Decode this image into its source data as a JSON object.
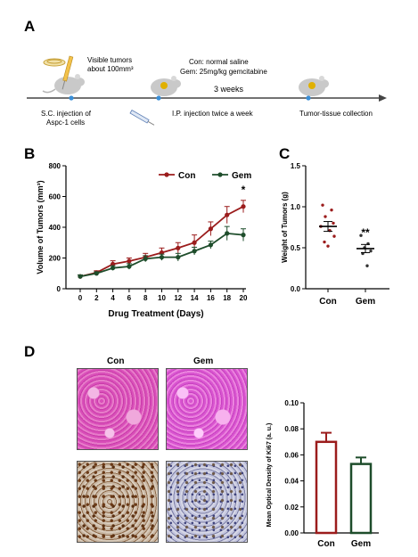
{
  "panels": {
    "a": "A",
    "b": "B",
    "c": "C",
    "d": "D"
  },
  "schematic": {
    "visible_tumors": "Visible tumors",
    "about_size": "about 100mm³",
    "con_treatment": "Con: normal saline",
    "gem_treatment": "Gem: 25mg/kg gemcitabine",
    "duration": "3 weeks",
    "step1_line1": "S.C. injection of",
    "step1_line2": "Aspc-1 cells",
    "step2": "I.P. injection twice a week",
    "step3": "Tumor-tissue collection"
  },
  "colors": {
    "con": "#9b1c1c",
    "gem": "#1e4d2b",
    "timeline": "#444444",
    "dot": "#3a8fd8",
    "tumor": "#e0b000"
  },
  "histology": {
    "con_label": "Con",
    "gem_label": "Gem",
    "images": [
      "he-con",
      "he-gem",
      "ki67-con",
      "ki67-gem"
    ]
  },
  "chart_data": [
    {
      "type": "line",
      "xlabel": "Drug Treatment (Days)",
      "ylabel": "Volume of Tumors (mm³)",
      "x": [
        0,
        2,
        4,
        6,
        8,
        10,
        12,
        14,
        16,
        18,
        20
      ],
      "xticks": [
        "0",
        "2",
        "4",
        "6",
        "8",
        "10",
        "12",
        "14",
        "16",
        "18",
        "20"
      ],
      "yticks": [
        "0",
        "200",
        "400",
        "600",
        "800"
      ],
      "ylim": [
        0,
        800
      ],
      "legend": "top-right",
      "annotation": "*",
      "series": [
        {
          "name": "Con",
          "values": [
            80,
            105,
            160,
            180,
            205,
            235,
            265,
            300,
            390,
            480,
            535
          ],
          "errors": [
            10,
            12,
            22,
            20,
            25,
            30,
            35,
            50,
            45,
            55,
            40
          ]
        },
        {
          "name": "Gem",
          "values": [
            80,
            100,
            135,
            145,
            195,
            205,
            205,
            245,
            285,
            360,
            350
          ],
          "errors": [
            10,
            10,
            15,
            18,
            20,
            20,
            25,
            25,
            25,
            45,
            40
          ]
        }
      ]
    },
    {
      "type": "scatter",
      "ylabel": "Weight of Tumors (g)",
      "categories": [
        "Con",
        "Gem"
      ],
      "yticks": [
        "0.0",
        "0.5",
        "1.0",
        "1.5"
      ],
      "ylim": [
        0,
        1.5
      ],
      "annotation": "**",
      "groups": [
        {
          "name": "Con",
          "points": [
            1.02,
            0.96,
            0.88,
            0.8,
            0.76,
            0.71,
            0.64,
            0.57,
            0.52
          ],
          "mean": 0.76,
          "sem": 0.06
        },
        {
          "name": "Gem",
          "points": [
            0.65,
            0.55,
            0.5,
            0.46,
            0.43,
            0.28
          ],
          "mean": 0.49,
          "sem": 0.05
        }
      ]
    },
    {
      "type": "bar",
      "ylabel": "Mean Optical Density of Ki67 (a. u.)",
      "categories": [
        "Con",
        "Gem"
      ],
      "values": [
        0.07,
        0.053
      ],
      "errors": [
        0.007,
        0.005
      ],
      "yticks": [
        "0.00",
        "0.02",
        "0.04",
        "0.06",
        "0.08",
        "0.10"
      ],
      "ylim": [
        0,
        0.1
      ]
    }
  ]
}
